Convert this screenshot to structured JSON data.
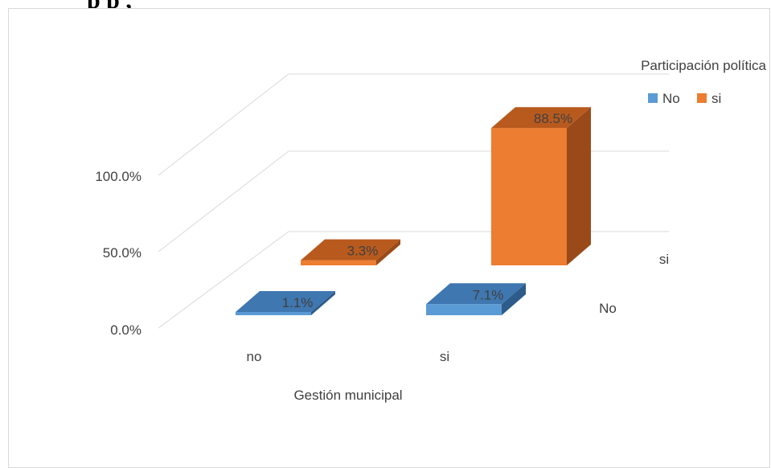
{
  "heading_fragment": "p                    p ,",
  "chart_data": {
    "type": "bar",
    "categories": [
      "no",
      "si"
    ],
    "series": [
      {
        "name": "No",
        "values": [
          1.1,
          7.1
        ],
        "labels": [
          "1.1%",
          "7.1%"
        ]
      },
      {
        "name": "si",
        "values": [
          3.3,
          88.5
        ],
        "labels": [
          "3.3%",
          "88.5%"
        ]
      }
    ],
    "y_ticks": [
      "0.0%",
      "50.0%",
      "100.0%"
    ],
    "ylim": [
      0,
      100
    ],
    "xlabel": "Gestión municipal",
    "legend_title": "Participación política",
    "legend_position": "top-right",
    "depth_labels": [
      "No",
      "si"
    ],
    "grid": true,
    "colors": {
      "No": {
        "top": "#3f77b0",
        "front": "#5b9bd5",
        "side": "#2e5c8a"
      },
      "si": {
        "top": "#b85a1e",
        "front": "#ed7d31",
        "side": "#9a4a19"
      }
    }
  }
}
